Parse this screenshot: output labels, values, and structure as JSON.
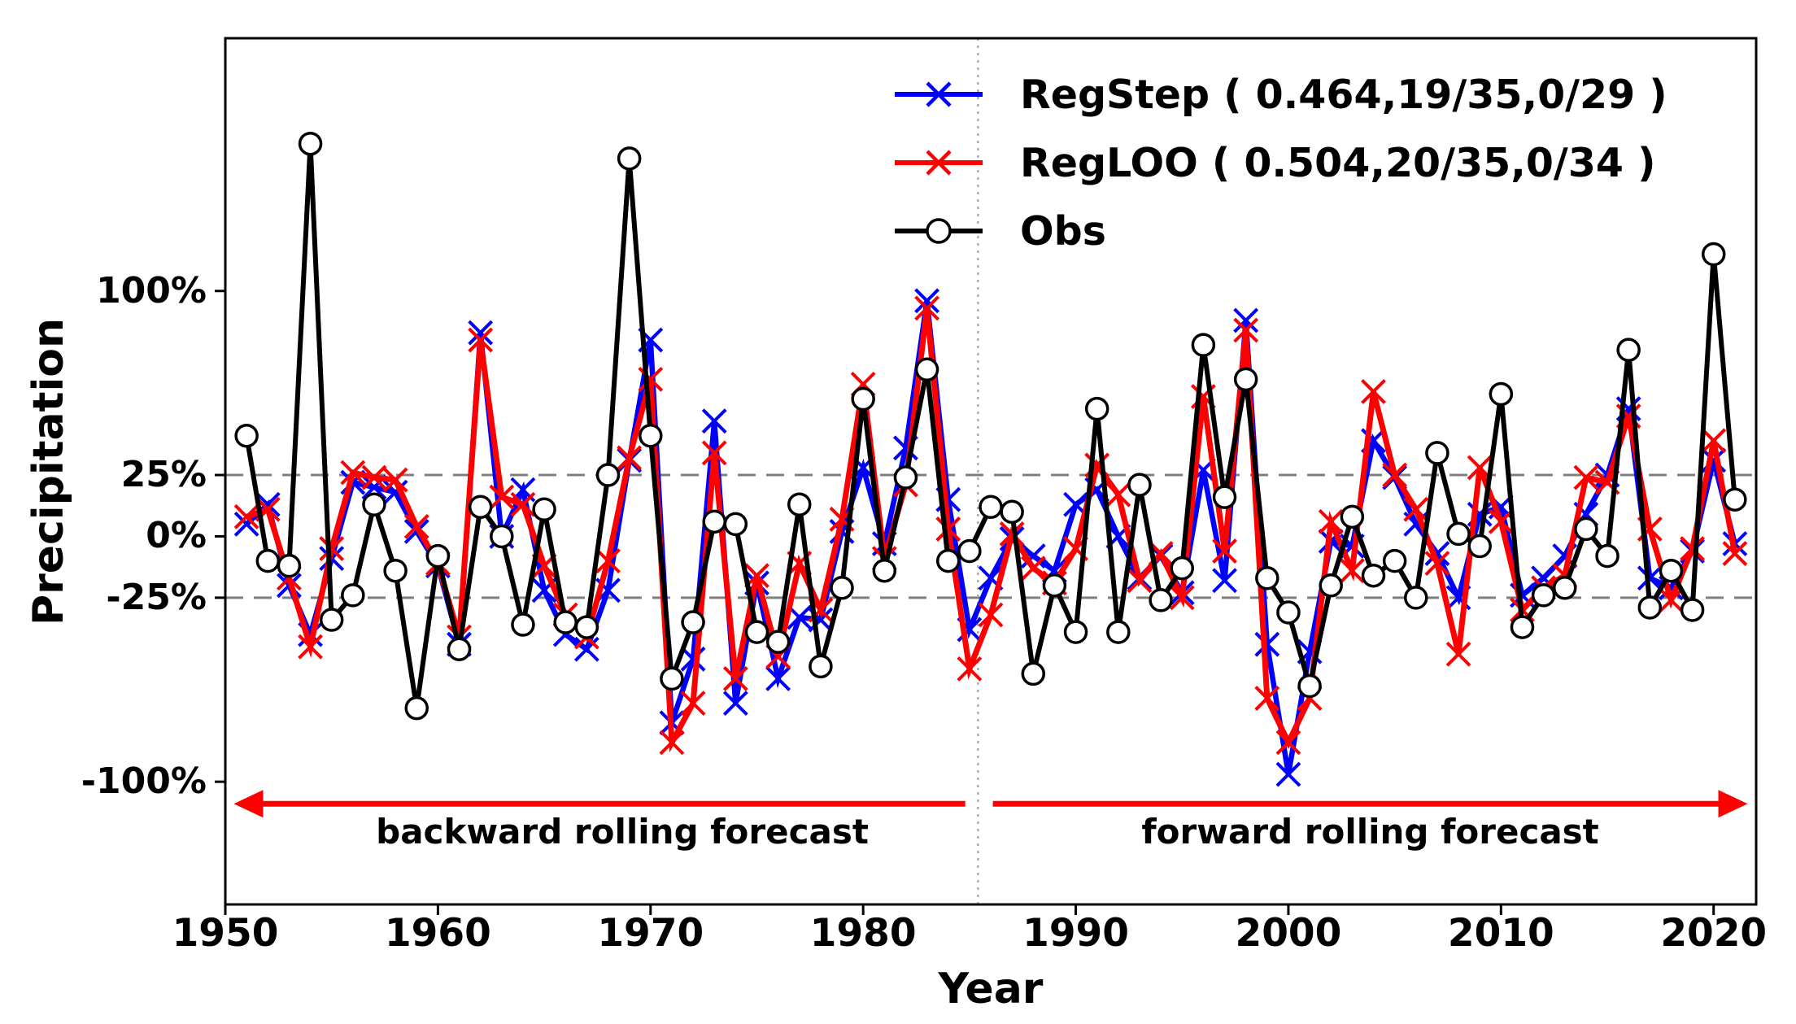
{
  "figure": {
    "xlabel": "Year",
    "ylabel": "Precipitation"
  },
  "legend": [
    {
      "label": "RegStep ( 0.464,19/35,0/29 )",
      "color": "#0000ff",
      "marker": "x"
    },
    {
      "label": "RegLOO ( 0.504,20/35,0/34 )",
      "color": "#ff0000",
      "marker": "x"
    },
    {
      "label": "Obs",
      "color": "#000000",
      "marker": "circle-open"
    }
  ],
  "axes": {
    "x_ticks": [
      {
        "label": "1950",
        "year": 1950
      },
      {
        "label": "1960",
        "year": 1960
      },
      {
        "label": "1970",
        "year": 1970
      },
      {
        "label": "1980",
        "year": 1980
      },
      {
        "label": "1990",
        "year": 1990
      },
      {
        "label": "2000",
        "year": 2000
      },
      {
        "label": "2010",
        "year": 2010
      },
      {
        "label": "2020",
        "year": 2020
      }
    ],
    "y_ticks": [
      {
        "label": "100%",
        "value": 100
      },
      {
        "label": "25%",
        "value": 25
      },
      {
        "label": "0%",
        "value": 0
      },
      {
        "label": "-25%",
        "value": -25
      },
      {
        "label": "-100%",
        "value": -100
      }
    ]
  },
  "chart_data": {
    "type": "line",
    "title": "",
    "xlabel": "Year",
    "ylabel": "Precipitation",
    "xlim": [
      1950,
      2022
    ],
    "ylim": [
      -150,
      203
    ],
    "gridlines_y": [
      25,
      -25
    ],
    "gridline_color": "#7f7f7f",
    "divider_year": 1985.4,
    "divider_color": "#aaaaaa",
    "arrow_color": "#ff0000",
    "arrow_y_value": -109,
    "forecast_regions": [
      {
        "label": "backward rolling forecast",
        "start_year": 1950.4,
        "end_year": 1984.8,
        "direction": "left"
      },
      {
        "label": "forward rolling forecast",
        "start_year": 1986.1,
        "end_year": 2021.6,
        "direction": "right"
      }
    ],
    "x": [
      1951,
      1952,
      1953,
      1954,
      1955,
      1956,
      1957,
      1958,
      1959,
      1960,
      1961,
      1962,
      1963,
      1964,
      1965,
      1966,
      1967,
      1968,
      1969,
      1970,
      1971,
      1972,
      1973,
      1974,
      1975,
      1976,
      1977,
      1978,
      1979,
      1980,
      1981,
      1982,
      1983,
      1984,
      1985,
      1986,
      1987,
      1988,
      1989,
      1990,
      1991,
      1992,
      1993,
      1994,
      1995,
      1996,
      1997,
      1998,
      1999,
      2000,
      2001,
      2002,
      2003,
      2004,
      2005,
      2006,
      2007,
      2008,
      2009,
      2010,
      2011,
      2012,
      2013,
      2014,
      2015,
      2016,
      2017,
      2018,
      2019,
      2020,
      2021
    ],
    "series": [
      {
        "name": "RegStep",
        "color": "#0000ff",
        "marker": "x",
        "line_width": 6.5,
        "values": [
          5,
          13,
          -20,
          -40,
          -9,
          22,
          20,
          18,
          2,
          -12,
          -44,
          83,
          0,
          19,
          -22,
          -40,
          -46,
          -22,
          31,
          80,
          -76,
          -50,
          47,
          -68,
          -19,
          -58,
          -33,
          -34,
          2,
          28,
          -3,
          36,
          96,
          15,
          -38,
          -17,
          -1,
          -8,
          -14,
          13,
          19,
          0,
          -17,
          -8,
          -23,
          27,
          -18,
          88,
          -44,
          -97,
          -47,
          -2,
          -4,
          39,
          24,
          5,
          -7,
          -25,
          9,
          12,
          -24,
          -17,
          -8,
          9,
          25,
          52,
          -17,
          -21,
          -6,
          31,
          -3
        ]
      },
      {
        "name": "RegLOO",
        "color": "#ff0000",
        "marker": "x",
        "line_width": 7,
        "values": [
          8,
          11,
          -17,
          -45,
          -5,
          26,
          24,
          23,
          4,
          -11,
          -41,
          80,
          16,
          13,
          -12,
          -32,
          -41,
          -10,
          32,
          64,
          -84,
          -68,
          34,
          -58,
          -16,
          -49,
          -11,
          -30,
          7,
          62,
          -9,
          21,
          93,
          3,
          -54,
          -32,
          1,
          -13,
          -19,
          -5,
          29,
          17,
          -18,
          -7,
          -25,
          57,
          -6,
          84,
          -66,
          -84,
          -66,
          6,
          -14,
          59,
          25,
          11,
          -11,
          -48,
          28,
          6,
          -30,
          -21,
          -16,
          24,
          22,
          49,
          3,
          -26,
          -5,
          39,
          -7
        ]
      },
      {
        "name": "Obs",
        "color": "#000000",
        "marker": "circle-open",
        "line_width": 6,
        "values": [
          41,
          -10,
          -12,
          160,
          -34,
          -24,
          13,
          -14,
          -70,
          -8,
          -46,
          12,
          0,
          -36,
          11,
          -35,
          -37,
          25,
          154,
          41,
          -58,
          -35,
          6,
          5,
          -39,
          -43,
          13,
          -53,
          -21,
          56,
          -14,
          24,
          68,
          -10,
          -6,
          12,
          10,
          -56,
          -20,
          -39,
          52,
          -39,
          21,
          -26,
          -13,
          78,
          16,
          64,
          -17,
          -31,
          -61,
          -20,
          8,
          -16,
          -10,
          -25,
          34,
          1,
          -4,
          58,
          -37,
          -24,
          -21,
          3,
          -8,
          76,
          -29,
          -14,
          -30,
          115,
          15
        ]
      }
    ]
  }
}
